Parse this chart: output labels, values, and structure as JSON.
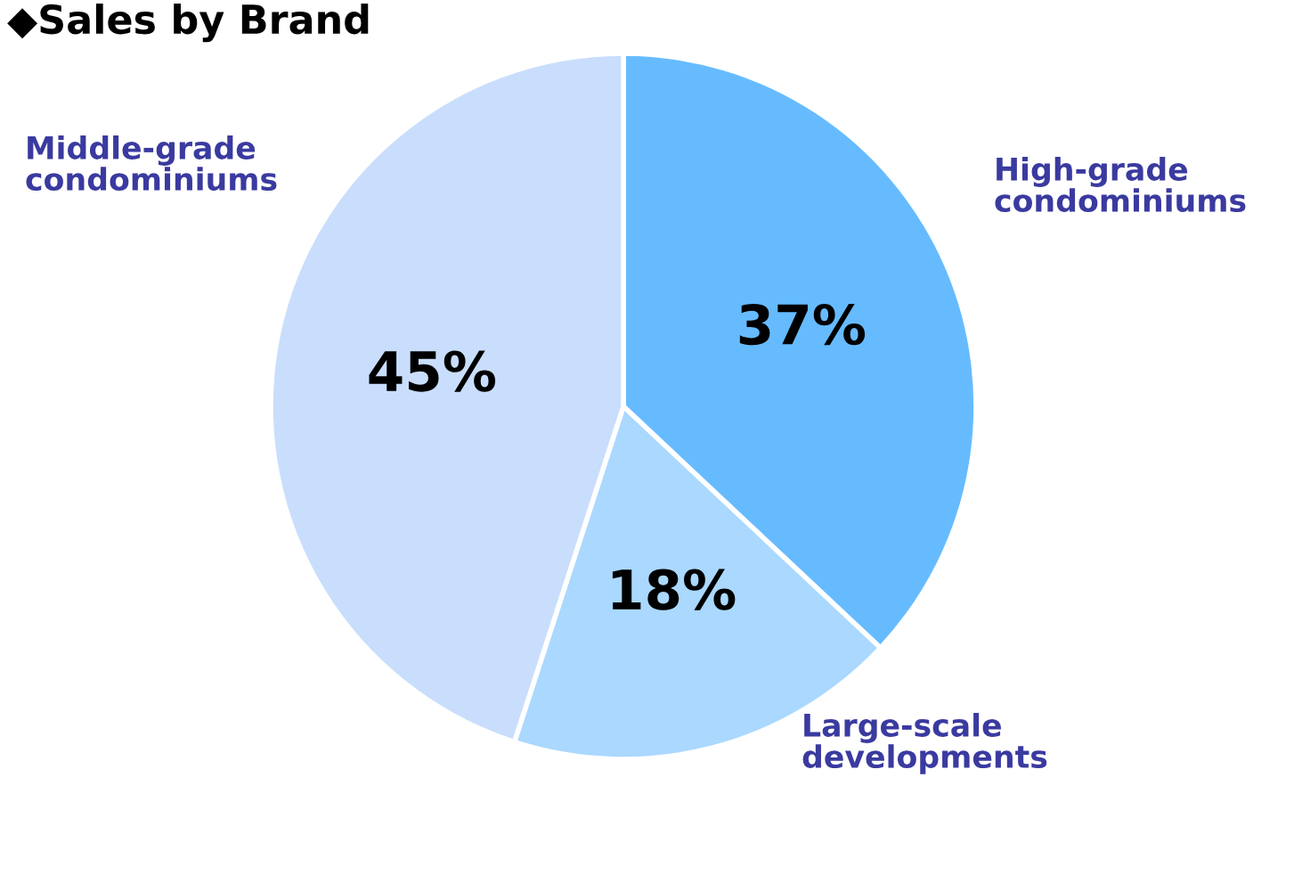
{
  "chart_data": {
    "type": "pie",
    "title": "◆Sales by Brand",
    "categories": [
      "High-grade\ncondominiums",
      "Large-scale\ndevelopments",
      "Middle-grade\ncondominiums"
    ],
    "values": [
      37,
      18,
      45
    ],
    "colors": [
      "#66bbff",
      "#aad8ff",
      "#c9defc"
    ],
    "value_labels": [
      "37%",
      "18%",
      "45%"
    ],
    "legend": false
  }
}
